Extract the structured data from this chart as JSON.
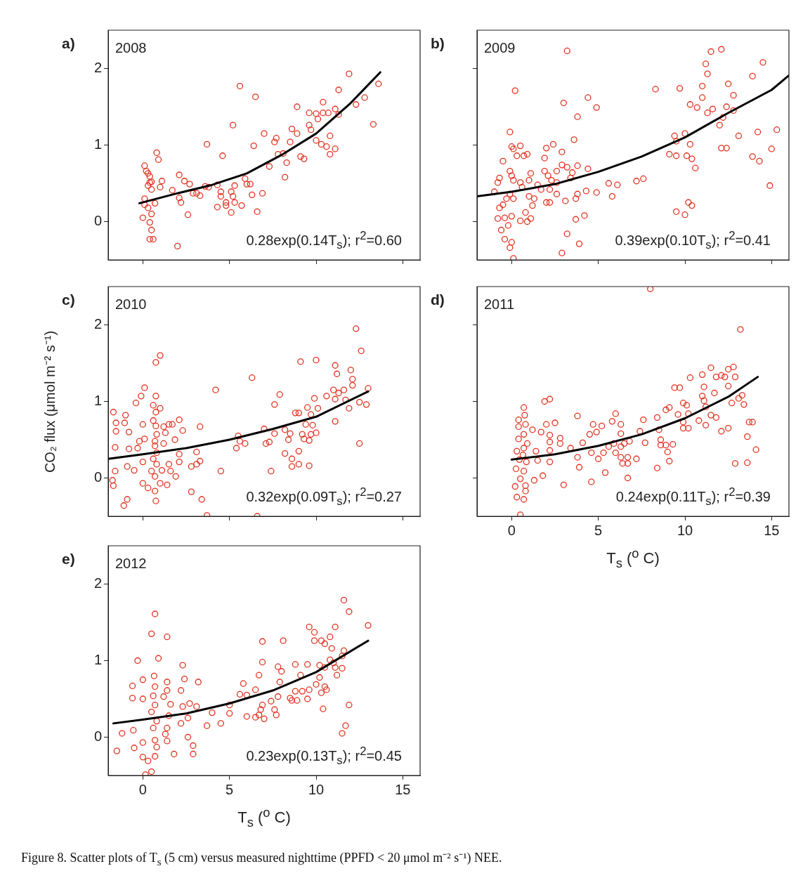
{
  "chart_data": [
    {
      "type": "scatter",
      "title": "a)",
      "annotations": [
        "2008",
        "0.28exp(0.14T$_{s}$); r$^{2}$=0.60"
      ],
      "xlim": [
        -2,
        16
      ],
      "xticks": [
        0,
        5,
        10,
        15
      ],
      "ylim": [
        -0.5,
        2.5
      ],
      "yticks": [
        0,
        1,
        2
      ],
      "tick_labels": "y",
      "legend": false,
      "series": [
        {
          "marker": "circle",
          "color": "#e0301e",
          "x": [
            0.1,
            0.2,
            0.3,
            0.4,
            0.4,
            0.5,
            0.3,
            0.5,
            0.1,
            0.1,
            0.3,
            0.0,
            0.4,
            0.5,
            0.4,
            0.6,
            0.5,
            0.7,
            0.8,
            0.9,
            1.1,
            1.0,
            1.7,
            2.1,
            2.1,
            2.2,
            2.4,
            2.7,
            2.6,
            2.0,
            2.9,
            3.1,
            3.3,
            3.6,
            3.8,
            3.7,
            4.3,
            4.5,
            4.5,
            4.3,
            4.8,
            4.8,
            4.6,
            5.1,
            5.2,
            5.3,
            5.7,
            5.1,
            5.3,
            5.2,
            5.6,
            5.9,
            6.0,
            6.2,
            6.3,
            6.9,
            6.6,
            6.4,
            6.5,
            7.0,
            7.3,
            7.7,
            7.6,
            7.8,
            8.1,
            8.3,
            8.2,
            8.5,
            8.6,
            8.9,
            8.9,
            9.1,
            9.3,
            9.6,
            9.6,
            9.7,
            10.0,
            10.1,
            10.4,
            10.7,
            10.4,
            10.0,
            10.3,
            10.6,
            10.8,
            10.8,
            11.1,
            11.1,
            11.3,
            11.3,
            11.9,
            12.3,
            12.8,
            13.3,
            13.6
          ],
          "values": [
            0.73,
            0.66,
            0.63,
            0.59,
            0.51,
            0.52,
            0.47,
            0.42,
            0.3,
            0.22,
            0.18,
            0.05,
            -0.01,
            -0.11,
            -0.23,
            -0.23,
            0.1,
            0.24,
            0.9,
            0.81,
            0.53,
            0.45,
            0.41,
            0.61,
            0.31,
            0.25,
            0.53,
            0.49,
            0.09,
            -0.32,
            0.37,
            0.37,
            0.34,
            0.46,
            0.45,
            1.01,
            0.48,
            0.39,
            0.33,
            0.19,
            0.25,
            0.21,
            0.86,
            0.39,
            0.33,
            0.25,
            0.21,
            0.12,
            0.47,
            1.26,
            1.77,
            0.56,
            0.49,
            0.49,
            0.35,
            0.37,
            0.13,
            0.99,
            1.63,
            1.15,
            0.72,
            1.09,
            1.04,
            0.88,
            0.89,
            0.77,
            0.58,
            1.04,
            1.21,
            1.15,
            1.5,
            0.85,
            0.82,
            1.42,
            1.26,
            1.2,
            1.41,
            1.34,
            1.42,
            1.42,
            1.56,
            1.06,
            1.01,
            0.98,
            1.12,
            0.88,
            0.95,
            1.47,
            1.4,
            1.72,
            1.93,
            1.53,
            1.62,
            1.27,
            1.8
          ]
        },
        {
          "type": "line",
          "marker": "none",
          "color": "#000000",
          "x": [
            -0.2,
            2,
            4,
            6,
            8,
            10,
            12,
            13.7
          ],
          "values": [
            0.24,
            0.37,
            0.48,
            0.63,
            0.87,
            1.15,
            1.55,
            1.95
          ]
        }
      ]
    },
    {
      "type": "scatter",
      "title": "b)",
      "annotations": [
        "2009",
        "0.39exp(0.10T$_{s}$); r$^{2}$=0.41"
      ],
      "xlim": [
        -2,
        16
      ],
      "xticks": [
        0,
        5,
        10,
        15
      ],
      "ylim": [
        -0.5,
        2.5
      ],
      "yticks": [
        0,
        1,
        2
      ],
      "tick_labels": false,
      "legend": false,
      "series": [
        {
          "marker": "circle",
          "color": "#e0301e",
          "x": [
            -1.0,
            -0.8,
            -0.7,
            -0.5,
            -0.1,
            0.2,
            0.0,
            0.1,
            0.3,
            0.5,
            0.7,
            0.9,
            -0.1,
            0.0,
            0.1,
            -0.1,
            0.1,
            -0.3,
            -0.5,
            -0.7,
            -0.8,
            -0.4,
            0.0,
            -0.6,
            -0.4,
            0.0,
            -0.1,
            0.1,
            -0.2,
            0.5,
            0.9,
            1.1,
            0.8,
            1.1,
            1.0,
            1.0,
            1.2,
            1.3,
            0.5,
            0.6,
            1.5,
            1.7,
            1.9,
            2.0,
            2.4,
            1.9,
            2.1,
            2.2,
            2.3,
            2.6,
            2.6,
            2.0,
            2.2,
            2.6,
            2.9,
            2.9,
            3.2,
            3.5,
            3.4,
            3.1,
            3.7,
            3.8,
            3.8,
            4.4,
            4.3,
            3.6,
            3.8,
            3.0,
            3.2,
            4.4,
            4.9,
            3.7,
            4.2,
            3.2,
            2.9,
            3.9,
            4.9,
            5.6,
            5.8,
            6.1,
            7.2,
            7.6,
            8.3,
            9.1,
            9.4,
            9.5,
            9.5,
            9.7,
            10.0,
            10.1,
            10.3,
            10.3,
            10.4,
            10.6,
            10.7,
            10.2,
            10.4,
            9.5,
            10.0,
            11.0,
            11.0,
            11.2,
            11.3,
            11.3,
            11.6,
            11.5,
            12.1,
            12.0,
            12.2,
            12.4,
            12.5,
            12.8,
            12.8,
            12.1,
            12.4,
            13.1,
            13.9,
            14.2,
            13.9,
            14.3,
            14.5,
            15.0,
            14.9,
            15.3
          ],
          "values": [
            0.39,
            0.51,
            0.57,
            0.79,
            1.17,
            1.71,
            0.98,
            0.95,
            0.86,
            0.99,
            0.86,
            0.88,
            0.66,
            0.6,
            0.54,
            0.36,
            0.3,
            0.3,
            0.22,
            0.18,
            0.04,
            0.05,
            0.07,
            -0.11,
            -0.23,
            -0.27,
            -0.34,
            -0.48,
            -0.05,
            0.01,
            0.0,
            0.04,
            0.12,
            0.63,
            0.54,
            0.33,
            0.21,
            0.3,
            0.51,
            0.45,
            0.48,
            0.42,
            0.83,
            0.96,
            1.01,
            0.66,
            0.6,
            0.42,
            0.54,
            0.66,
            0.51,
            0.25,
            0.25,
            0.36,
            0.91,
            0.74,
            0.71,
            0.64,
            0.57,
            0.27,
            0.3,
            0.36,
            0.73,
            0.69,
            0.4,
            1.07,
            1.37,
            1.55,
            2.23,
            1.62,
            1.49,
            0.03,
            0.08,
            -0.16,
            -0.41,
            -0.29,
            0.38,
            0.5,
            0.33,
            0.48,
            0.53,
            0.56,
            1.73,
            0.88,
            1.12,
            1.05,
            0.86,
            1.74,
            1.15,
            0.86,
            1.53,
            1.01,
            0.82,
            0.7,
            1.49,
            0.25,
            0.21,
            0.13,
            0.09,
            1.62,
            1.77,
            2.06,
            1.93,
            1.42,
            1.47,
            2.22,
            2.25,
            1.26,
            1.36,
            1.5,
            1.8,
            1.65,
            1.45,
            0.96,
            0.96,
            1.12,
            1.9,
            1.17,
            0.85,
            0.79,
            2.08,
            0.95,
            0.47,
            1.2
          ]
        },
        {
          "type": "line",
          "marker": "none",
          "color": "#000000",
          "x": [
            -2,
            0,
            2.5,
            5,
            7.5,
            10,
            12.5,
            15,
            16
          ],
          "values": [
            0.33,
            0.39,
            0.49,
            0.65,
            0.85,
            1.1,
            1.42,
            1.72,
            1.91
          ]
        }
      ]
    },
    {
      "type": "scatter",
      "title": "c)",
      "ylabel": "CO₂ flux (μmol m⁻² s⁻¹)",
      "annotations": [
        "2010",
        "0.32exp(0.09T$_{s}$); r$^{2}$=0.27"
      ],
      "xlim": [
        -2,
        16
      ],
      "xticks": [
        0,
        5,
        10,
        15
      ],
      "ylim": [
        -0.5,
        2.5
      ],
      "yticks": [
        0,
        1,
        2
      ],
      "tick_labels": "y",
      "legend": false,
      "series": [
        {
          "marker": "circle",
          "color": "#e0301e",
          "x": [
            -1.7,
            -1.55,
            -1.55,
            -1.6,
            -1.6,
            -1.75,
            -1.7,
            -1.1,
            -0.9,
            -1.0,
            -1.05,
            -0.8,
            -0.8,
            -0.9,
            -0.5,
            -0.4,
            -0.1,
            0.1,
            0.0,
            -0.2,
            0.1,
            -0.3,
            0.0,
            0.0,
            0.3,
            0.75,
            1.0,
            0.75,
            0.6,
            0.75,
            1.0,
            0.6,
            0.75,
            0.8,
            0.7,
            0.7,
            0.8,
            0.6,
            0.8,
            0.5,
            0.7,
            0.7,
            0.75,
            1.0,
            1.1,
            1.2,
            1.3,
            1.2,
            1.4,
            1.5,
            1.7,
            2.1,
            1.85,
            1.5,
            1.6,
            1.9,
            2.1,
            2.1,
            2.3,
            2.8,
            3.1,
            3.1,
            3.3,
            3.3,
            2.8,
            3.4,
            3.7,
            4.2,
            4.5,
            5.4,
            5.5,
            5.6,
            5.9,
            6.3,
            6.6,
            7.0,
            7.1,
            7.3,
            7.4,
            7.6,
            7.6,
            7.9,
            8.2,
            8.2,
            8.4,
            8.5,
            8.6,
            8.6,
            8.8,
            9.0,
            9.0,
            9.0,
            9.1,
            9.2,
            9.3,
            9.4,
            9.5,
            9.6,
            9.6,
            9.7,
            9.7,
            9.8,
            9.9,
            10.0,
            10.0,
            10.1,
            10.6,
            11.1,
            11.2,
            11.0,
            11.1,
            11.1,
            11.3,
            11.6,
            11.7,
            11.9,
            12.0,
            12.1,
            12.1,
            12.3,
            12.6,
            12.5,
            12.9,
            13.0,
            12.5
          ],
          "values": [
            0.86,
            0.72,
            0.61,
            0.4,
            0.09,
            -0.03,
            -0.1,
            -0.36,
            -0.28,
            0.82,
            0.72,
            0.6,
            0.38,
            0.15,
            0.1,
            0.98,
            1.07,
            1.18,
            0.7,
            0.48,
            0.51,
            0.39,
            0.21,
            -0.07,
            -0.13,
            1.51,
            1.6,
            1.07,
            0.95,
            0.86,
            0.91,
            0.75,
            0.68,
            0.57,
            0.48,
            0.42,
            0.33,
            0.25,
            0.18,
            0.09,
            0.02,
            -0.17,
            -0.3,
            -0.07,
            0.1,
            0.67,
            0.59,
            0.45,
            -0.09,
            0.7,
            0.7,
            0.76,
            0.5,
            0.18,
            0.09,
            0.02,
            0.31,
            0.21,
            0.62,
            0.15,
            0.18,
            0.34,
            0.67,
            0.22,
            -0.18,
            -0.28,
            -0.49,
            1.15,
            0.09,
            0.39,
            0.55,
            0.48,
            0.45,
            1.31,
            -0.5,
            0.64,
            0.45,
            0.47,
            0.09,
            0.96,
            0.58,
            1.09,
            0.63,
            0.32,
            0.5,
            0.58,
            0.15,
            0.25,
            0.85,
            0.85,
            0.35,
            0.18,
            1.52,
            0.57,
            0.51,
            0.7,
            0.92,
            0.49,
            0.16,
            0.83,
            0.57,
            0.69,
            1.04,
            0.59,
            1.54,
            0.91,
            1.07,
            1.47,
            1.36,
            1.15,
            1.03,
            0.74,
            1.11,
            1.15,
            1.02,
            0.91,
            1.41,
            1.29,
            1.21,
            1.95,
            1.66,
            0.99,
            0.96,
            1.17,
            0.45
          ]
        },
        {
          "type": "line",
          "marker": "none",
          "color": "#000000",
          "x": [
            -2,
            0,
            2.5,
            5,
            7.5,
            10,
            13
          ],
          "values": [
            0.25,
            0.31,
            0.39,
            0.5,
            0.64,
            0.8,
            1.13
          ]
        }
      ]
    },
    {
      "type": "scatter",
      "title": "d)",
      "xlabel": "T$_{s}$ ($^{o}$ C)",
      "annotations": [
        "2011",
        "0.24exp(0.11T$_{s}$); r$^{2}$=0.39"
      ],
      "xlim": [
        -2,
        16
      ],
      "xticks": [
        0,
        5,
        10,
        15
      ],
      "ylim": [
        -0.5,
        2.5
      ],
      "yticks": [
        0,
        1,
        2
      ],
      "tick_labels": "x",
      "legend": false,
      "series": [
        {
          "marker": "circle",
          "color": "#e0301e",
          "x": [
            8.0,
            0.7,
            0.75,
            0.4,
            0.8,
            0.4,
            0.7,
            1.2,
            0.4,
            0.9,
            0.3,
            0.7,
            0.65,
            0.45,
            0.85,
            0.25,
            0.7,
            0.5,
            0.8,
            0.2,
            0.8,
            0.3,
            0.7,
            0.5,
            1.4,
            1.5,
            1.3,
            1.7,
            1.8,
            1.9,
            2.2,
            2.0,
            2.2,
            2.2,
            2.2,
            2.2,
            2.5,
            2.8,
            2.8,
            3.0,
            3.4,
            3.8,
            3.8,
            3.9,
            4.1,
            4.6,
            4.5,
            4.6,
            4.7,
            4.9,
            5.2,
            5.0,
            5.3,
            5.4,
            5.6,
            5.8,
            5.9,
            6.0,
            6.0,
            6.3,
            6.3,
            6.3,
            6.3,
            6.4,
            6.5,
            6.7,
            6.7,
            6.8,
            6.7,
            7.2,
            7.4,
            7.6,
            7.7,
            8.4,
            8.4,
            8.5,
            8.6,
            8.6,
            8.9,
            8.9,
            9.1,
            9.0,
            9.1,
            9.3,
            9.4,
            9.7,
            9.6,
            9.9,
            9.9,
            9.9,
            10.1,
            10.2,
            10.2,
            10.3,
            10.8,
            11.0,
            11.1,
            11.0,
            11.1,
            11.2,
            11.2,
            11.5,
            11.5,
            11.8,
            11.8,
            11.7,
            12.1,
            12.1,
            12.3,
            12.5,
            12.5,
            12.7,
            12.8,
            12.9,
            12.5,
            12.9,
            13.1,
            13.2,
            13.3,
            13.4,
            13.7,
            13.9,
            13.6,
            13.6,
            14.1
          ],
          "values": [
            2.47,
            0.92,
            0.82,
            0.76,
            0.7,
            0.67,
            0.57,
            0.63,
            0.51,
            0.45,
            0.35,
            0.39,
            0.3,
            0.24,
            0.21,
            0.12,
            0.09,
            -0.01,
            -0.1,
            -0.11,
            -0.17,
            -0.25,
            -0.28,
            -0.48,
            0.35,
            0.23,
            -0.03,
            0.6,
            0.03,
            1.0,
            1.03,
            0.7,
            0.56,
            0.47,
            0.36,
            0.21,
            0.72,
            0.52,
            0.45,
            -0.09,
            0.39,
            0.81,
            0.27,
            0.14,
            0.46,
            -0.05,
            0.57,
            0.33,
            0.7,
            0.6,
            0.68,
            0.25,
            0.33,
            0.07,
            0.41,
            0.74,
            0.45,
            0.33,
            0.84,
            0.7,
            0.58,
            0.41,
            0.27,
            0.19,
            0.45,
            0.27,
            0.19,
            0.48,
            0.0,
            0.25,
            0.61,
            0.76,
            0.46,
            0.79,
            0.13,
            0.63,
            0.5,
            0.43,
            0.89,
            0.43,
            0.92,
            0.34,
            0.22,
            0.44,
            1.18,
            1.18,
            0.83,
            0.98,
            0.73,
            0.65,
            0.95,
            0.84,
            0.65,
            1.31,
            0.75,
            1.35,
            1.19,
            1.07,
            1.01,
            0.93,
            0.69,
            1.44,
            0.82,
            1.32,
            0.79,
            1.11,
            1.34,
            0.61,
            1.32,
            1.42,
            1.2,
            0.98,
            1.45,
            1.32,
            0.65,
            0.19,
            1.04,
            1.94,
            1.08,
            0.96,
            0.73,
            0.73,
            0.54,
            0.2,
            0.37
          ]
        },
        {
          "type": "line",
          "marker": "none",
          "color": "#000000",
          "x": [
            0,
            2.5,
            5,
            7.5,
            10,
            12.5,
            14.2
          ],
          "values": [
            0.24,
            0.31,
            0.42,
            0.57,
            0.78,
            1.06,
            1.32
          ]
        }
      ]
    },
    {
      "type": "scatter",
      "title": "e)",
      "xlabel": "T$_{s}$ ($^{o}$ C)",
      "annotations": [
        "2012",
        "0.23exp(0.13T$_{s}$); r$^{2}$=0.45",
        "Figure 8. Scatter plots of T$_{s}$ (5 cm) versus measured nighttime (PPFD < 20 μmol m⁻² s⁻¹) NEE."
      ],
      "xlim": [
        -2,
        16
      ],
      "xticks": [
        0,
        5,
        10,
        15
      ],
      "ylim": [
        -0.5,
        2.5
      ],
      "yticks": [
        0,
        1,
        2
      ],
      "legend": false,
      "series": [
        {
          "marker": "circle",
          "color": "#e0301e",
          "x": [
            -1.5,
            -1.2,
            -0.6,
            -0.6,
            -0.3,
            0.0,
            0.0,
            -0.55,
            -0.5,
            0.0,
            0.0,
            0.3,
            0.5,
            0.15,
            0.5,
            0.7,
            0.9,
            1.4,
            0.65,
            0.7,
            0.6,
            0.7,
            0.5,
            0.8,
            0.6,
            0.7,
            0.8,
            0.7,
            1.2,
            1.4,
            1.4,
            1.6,
            1.5,
            1.4,
            1.4,
            1.8,
            1.3,
            2.3,
            2.4,
            2.2,
            2.3,
            2.2,
            2.6,
            2.6,
            2.7,
            2.9,
            2.9,
            3.1,
            3.2,
            3.7,
            4.0,
            4.5,
            5.0,
            5.0,
            5.6,
            5.8,
            6.0,
            6.0,
            6.5,
            6.5,
            6.7,
            6.8,
            6.9,
            7.0,
            6.9,
            6.9,
            6.7,
            7.4,
            7.6,
            7.7,
            7.8,
            7.8,
            8.0,
            7.9,
            8.1,
            8.5,
            8.6,
            8.8,
            8.8,
            8.9,
            9.1,
            9.2,
            9.5,
            9.5,
            9.6,
            9.6,
            9.9,
            9.9,
            10.0,
            10.2,
            10.2,
            10.3,
            10.3,
            10.4,
            10.5,
            10.5,
            10.5,
            10.6,
            10.8,
            10.8,
            10.9,
            11.0,
            11.1,
            11.1,
            11.2,
            11.5,
            11.5,
            11.6,
            11.6,
            11.9,
            11.9,
            11.7,
            11.5,
            13.0
          ],
          "values": [
            -0.18,
            0.05,
            0.67,
            0.51,
            1.0,
            0.5,
            0.75,
            0.09,
            -0.14,
            -0.07,
            -0.26,
            -0.31,
            -0.45,
            -0.49,
            1.35,
            1.61,
            1.03,
            1.31,
            0.8,
            0.66,
            0.54,
            0.42,
            0.33,
            0.21,
            0.12,
            -0.04,
            -0.13,
            -0.25,
            0.53,
            0.72,
            0.61,
            0.43,
            0.28,
            0.12,
            -0.05,
            -0.22,
            0.04,
            0.94,
            0.76,
            0.61,
            0.4,
            0.18,
            0.25,
            0.0,
            0.44,
            -0.11,
            -0.22,
            0.4,
            0.72,
            0.15,
            0.32,
            0.18,
            0.31,
            0.42,
            0.56,
            0.7,
            0.27,
            0.55,
            0.62,
            0.26,
            0.29,
            0.36,
            0.42,
            0.24,
            1.25,
            0.98,
            0.81,
            0.47,
            0.36,
            0.29,
            0.53,
            0.92,
            0.86,
            0.72,
            1.26,
            0.51,
            0.48,
            0.6,
            0.95,
            0.48,
            0.81,
            0.6,
            0.5,
            0.95,
            0.62,
            1.44,
            1.37,
            1.26,
            0.69,
            0.94,
            0.78,
            1.26,
            0.58,
            0.37,
            0.66,
            1.22,
            0.91,
            0.62,
            1.31,
            1.01,
            1.16,
            0.97,
            1.44,
            0.91,
            0.81,
            0.9,
            1.06,
            1.13,
            1.79,
            1.64,
            0.42,
            0.15,
            0.05,
            1.46
          ]
        },
        {
          "type": "line",
          "marker": "none",
          "color": "#000000",
          "x": [
            -1.7,
            0,
            2.5,
            5,
            7.5,
            10,
            13
          ],
          "values": [
            0.18,
            0.23,
            0.31,
            0.44,
            0.61,
            0.85,
            1.26
          ]
        }
      ]
    }
  ]
}
